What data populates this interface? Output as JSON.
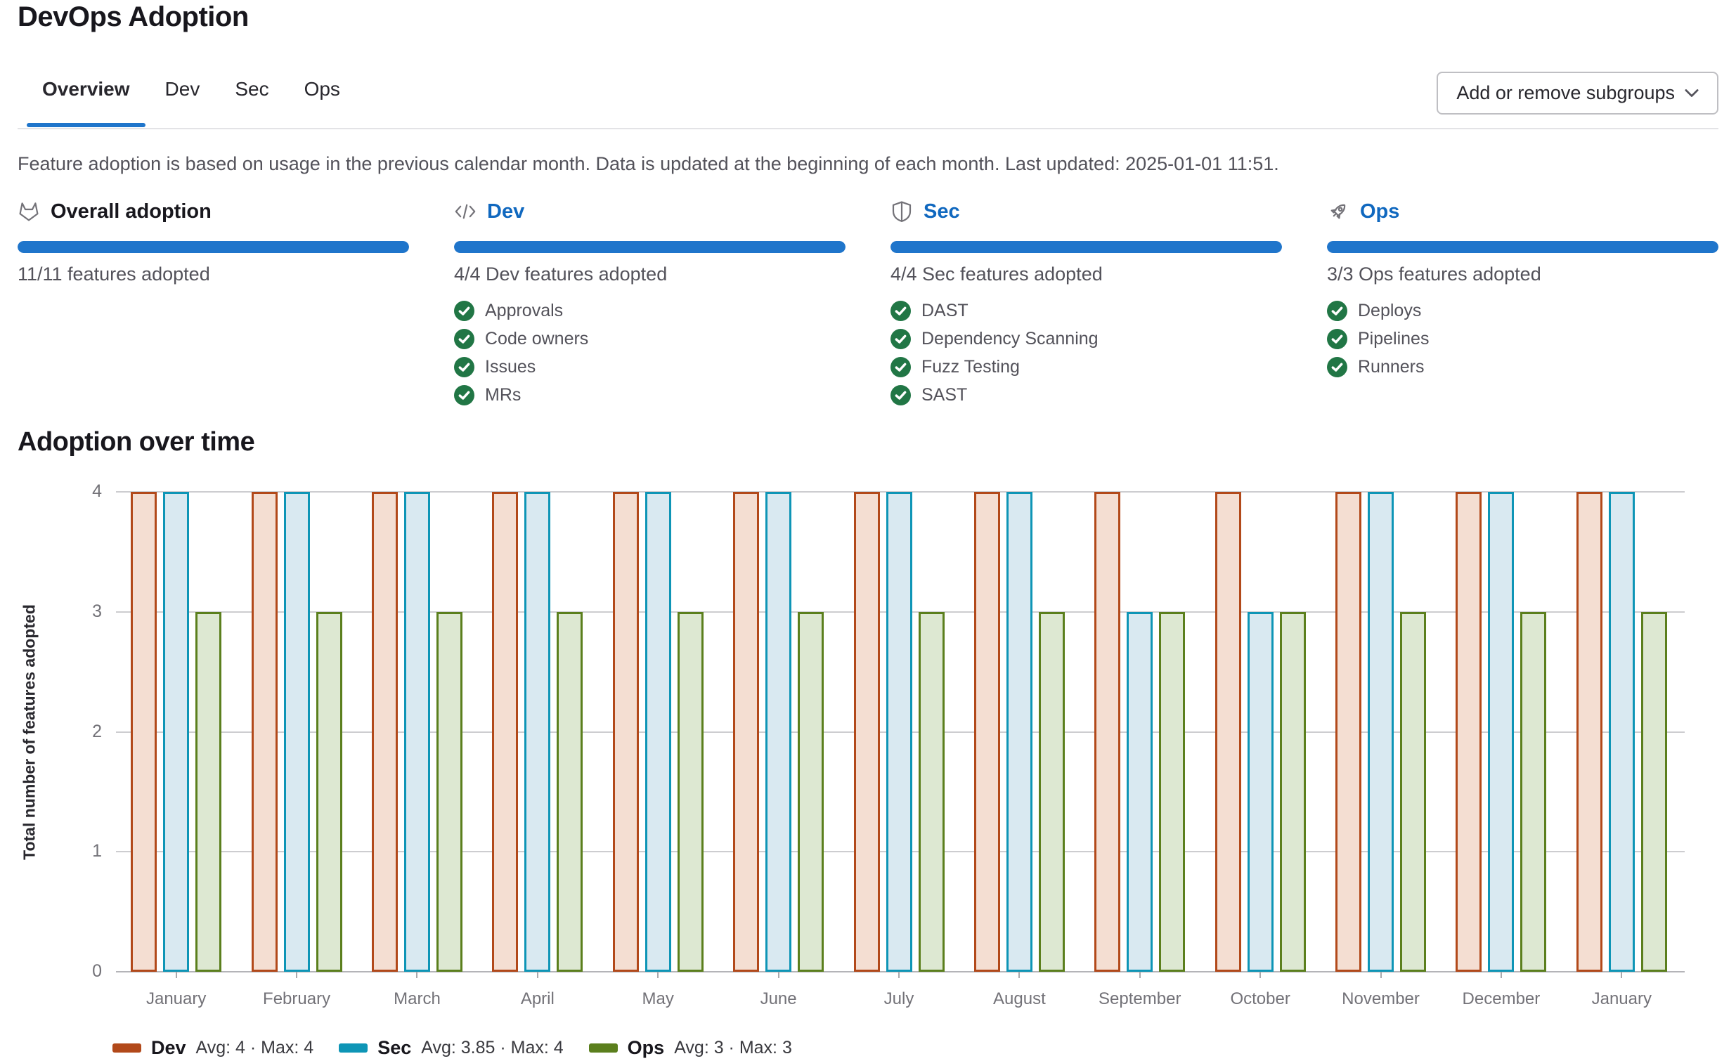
{
  "header": {
    "title": "DevOps Adoption"
  },
  "tabs": [
    {
      "label": "Overview",
      "active": true
    },
    {
      "label": "Dev",
      "active": false
    },
    {
      "label": "Sec",
      "active": false
    },
    {
      "label": "Ops",
      "active": false
    }
  ],
  "toolbar": {
    "subgroups_button": "Add or remove subgroups"
  },
  "description": "Feature adoption is based on usage in the previous calendar month. Data is updated at the beginning of each month. Last updated: 2025-01-01 11:51.",
  "cards": [
    {
      "icon": "tanuki-icon",
      "title": "Overall adoption",
      "is_link": false,
      "progress_percent": 100,
      "summary": "11/11 features adopted",
      "features": []
    },
    {
      "icon": "code-icon",
      "title": "Dev",
      "is_link": true,
      "progress_percent": 100,
      "summary": "4/4 Dev features adopted",
      "features": [
        "Approvals",
        "Code owners",
        "Issues",
        "MRs"
      ]
    },
    {
      "icon": "shield-icon",
      "title": "Sec",
      "is_link": true,
      "progress_percent": 100,
      "summary": "4/4 Sec features adopted",
      "features": [
        "DAST",
        "Dependency Scanning",
        "Fuzz Testing",
        "SAST"
      ]
    },
    {
      "icon": "rocket-icon",
      "title": "Ops",
      "is_link": true,
      "progress_percent": 100,
      "summary": "3/3 Ops features adopted",
      "features": [
        "Deploys",
        "Pipelines",
        "Runners"
      ]
    }
  ],
  "section": {
    "title": "Adoption over time"
  },
  "chart_data": {
    "type": "bar",
    "title": "Adoption over time",
    "xlabel": "",
    "ylabel": "Total number of features adopted",
    "ylim": [
      0,
      4
    ],
    "yticks": [
      0,
      1,
      2,
      3,
      4
    ],
    "grid": true,
    "legend_position": "bottom-left",
    "categories": [
      "January",
      "February",
      "March",
      "April",
      "May",
      "June",
      "July",
      "August",
      "September",
      "October",
      "November",
      "December",
      "January"
    ],
    "series": [
      {
        "name": "Dev",
        "color": "#b2491a",
        "fill": "#f4ded2",
        "values": [
          4,
          4,
          4,
          4,
          4,
          4,
          4,
          4,
          4,
          4,
          4,
          4,
          4
        ],
        "legend_stats": "Avg: 4 · Max: 4"
      },
      {
        "name": "Sec",
        "color": "#0e95b6",
        "fill": "#d9e9f1",
        "values": [
          4,
          4,
          4,
          4,
          4,
          4,
          4,
          4,
          3,
          3,
          4,
          4,
          4
        ],
        "legend_stats": "Avg: 3.85 · Max: 4"
      },
      {
        "name": "Ops",
        "color": "#5b7f1d",
        "fill": "#dde8d2",
        "values": [
          3,
          3,
          3,
          3,
          3,
          3,
          3,
          3,
          3,
          3,
          3,
          3,
          3
        ],
        "legend_stats": "Avg: 3 · Max: 3"
      }
    ]
  },
  "colors": {
    "accent_blue": "#1f75cb",
    "link_blue": "#1068bf",
    "success_green": "#217645"
  }
}
